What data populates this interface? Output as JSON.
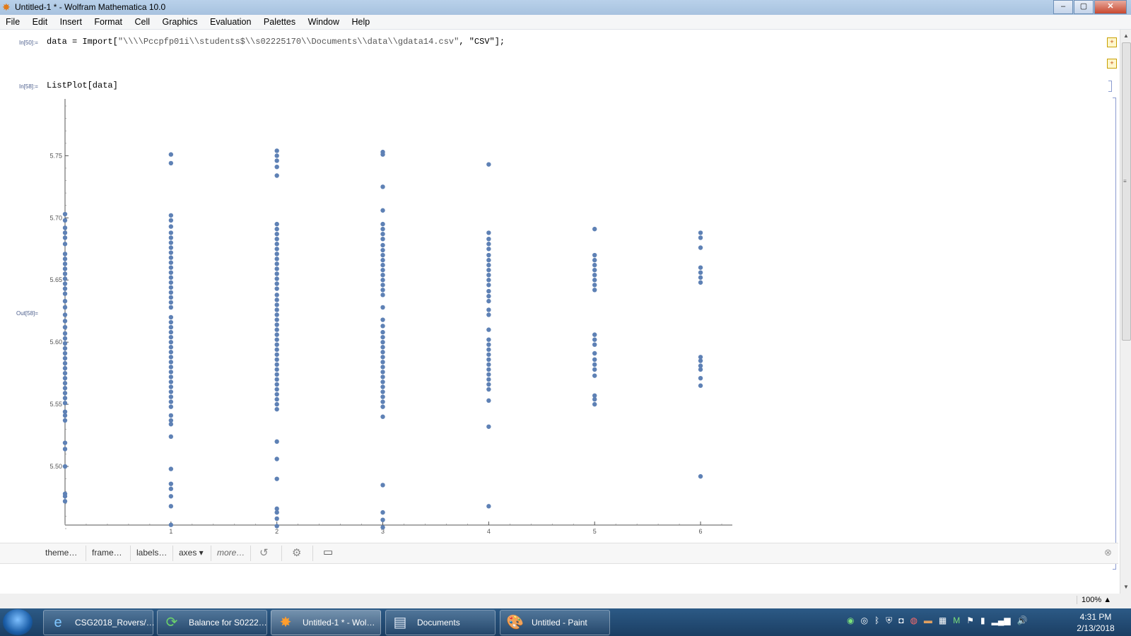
{
  "window": {
    "title": "Untitled-1 * - Wolfram Mathematica 10.0",
    "min": "–",
    "max": "▢",
    "close": "✕"
  },
  "menu": [
    "File",
    "Edit",
    "Insert",
    "Format",
    "Cell",
    "Graphics",
    "Evaluation",
    "Palettes",
    "Window",
    "Help"
  ],
  "cells": [
    {
      "label": "In[50]:=",
      "code_pre": "data = Import[",
      "string": "\"\\\\\\\\Pccpfp01i\\\\students$\\\\s02225170\\\\Documents\\\\data\\\\gdata14.csv\"",
      "code_post": ", \"CSV\"];"
    },
    {
      "label": "In[58]:=",
      "code": "ListPlot[data]"
    }
  ],
  "output_label": "Out[58]=",
  "chart_data": {
    "type": "scatter",
    "color": "#5E81B5",
    "xlim": [
      0,
      6.3
    ],
    "ylim": [
      5.45,
      5.79
    ],
    "x_ticks": [
      1,
      2,
      3,
      4,
      5,
      6
    ],
    "x_tick_labels": [
      "1",
      "2",
      "3",
      "4",
      "5",
      "6"
    ],
    "y_ticks": [
      5.5,
      5.55,
      5.6,
      5.65,
      5.7,
      5.75
    ],
    "y_tick_labels": [
      "5.50",
      "5.55",
      "5.60",
      "5.65",
      "5.70",
      "5.75"
    ],
    "points": [
      [
        0,
        5.703
      ],
      [
        0,
        5.698
      ],
      [
        0,
        5.692
      ],
      [
        0,
        5.688
      ],
      [
        0,
        5.684
      ],
      [
        0,
        5.679
      ],
      [
        0,
        5.671
      ],
      [
        0,
        5.667
      ],
      [
        0,
        5.663
      ],
      [
        0,
        5.659
      ],
      [
        0,
        5.655
      ],
      [
        0,
        5.651
      ],
      [
        0,
        5.647
      ],
      [
        0,
        5.643
      ],
      [
        0,
        5.639
      ],
      [
        0,
        5.633
      ],
      [
        0,
        5.628
      ],
      [
        0,
        5.622
      ],
      [
        0,
        5.617
      ],
      [
        0,
        5.612
      ],
      [
        0,
        5.607
      ],
      [
        0,
        5.603
      ],
      [
        0,
        5.599
      ],
      [
        0,
        5.595
      ],
      [
        0,
        5.591
      ],
      [
        0,
        5.587
      ],
      [
        0,
        5.583
      ],
      [
        0,
        5.579
      ],
      [
        0,
        5.575
      ],
      [
        0,
        5.571
      ],
      [
        0,
        5.567
      ],
      [
        0,
        5.563
      ],
      [
        0,
        5.559
      ],
      [
        0,
        5.555
      ],
      [
        0,
        5.551
      ],
      [
        0,
        5.544
      ],
      [
        0,
        5.541
      ],
      [
        0,
        5.537
      ],
      [
        0,
        5.519
      ],
      [
        0,
        5.514
      ],
      [
        0,
        5.5
      ],
      [
        0,
        5.478
      ],
      [
        0,
        5.476
      ],
      [
        0,
        5.472
      ],
      [
        1,
        5.751
      ],
      [
        1,
        5.744
      ],
      [
        1,
        5.702
      ],
      [
        1,
        5.698
      ],
      [
        1,
        5.693
      ],
      [
        1,
        5.688
      ],
      [
        1,
        5.684
      ],
      [
        1,
        5.68
      ],
      [
        1,
        5.676
      ],
      [
        1,
        5.672
      ],
      [
        1,
        5.668
      ],
      [
        1,
        5.664
      ],
      [
        1,
        5.66
      ],
      [
        1,
        5.656
      ],
      [
        1,
        5.652
      ],
      [
        1,
        5.648
      ],
      [
        1,
        5.644
      ],
      [
        1,
        5.64
      ],
      [
        1,
        5.636
      ],
      [
        1,
        5.632
      ],
      [
        1,
        5.628
      ],
      [
        1,
        5.62
      ],
      [
        1,
        5.616
      ],
      [
        1,
        5.612
      ],
      [
        1,
        5.608
      ],
      [
        1,
        5.604
      ],
      [
        1,
        5.6
      ],
      [
        1,
        5.596
      ],
      [
        1,
        5.592
      ],
      [
        1,
        5.588
      ],
      [
        1,
        5.584
      ],
      [
        1,
        5.58
      ],
      [
        1,
        5.576
      ],
      [
        1,
        5.572
      ],
      [
        1,
        5.568
      ],
      [
        1,
        5.564
      ],
      [
        1,
        5.56
      ],
      [
        1,
        5.556
      ],
      [
        1,
        5.552
      ],
      [
        1,
        5.548
      ],
      [
        1,
        5.541
      ],
      [
        1,
        5.537
      ],
      [
        1,
        5.534
      ],
      [
        1,
        5.524
      ],
      [
        1,
        5.498
      ],
      [
        1,
        5.486
      ],
      [
        1,
        5.482
      ],
      [
        1,
        5.476
      ],
      [
        1,
        5.468
      ],
      [
        1,
        5.453
      ],
      [
        2,
        5.754
      ],
      [
        2,
        5.75
      ],
      [
        2,
        5.746
      ],
      [
        2,
        5.741
      ],
      [
        2,
        5.734
      ],
      [
        2,
        5.695
      ],
      [
        2,
        5.691
      ],
      [
        2,
        5.687
      ],
      [
        2,
        5.683
      ],
      [
        2,
        5.679
      ],
      [
        2,
        5.675
      ],
      [
        2,
        5.671
      ],
      [
        2,
        5.667
      ],
      [
        2,
        5.663
      ],
      [
        2,
        5.659
      ],
      [
        2,
        5.655
      ],
      [
        2,
        5.651
      ],
      [
        2,
        5.647
      ],
      [
        2,
        5.643
      ],
      [
        2,
        5.638
      ],
      [
        2,
        5.634
      ],
      [
        2,
        5.63
      ],
      [
        2,
        5.626
      ],
      [
        2,
        5.622
      ],
      [
        2,
        5.618
      ],
      [
        2,
        5.614
      ],
      [
        2,
        5.61
      ],
      [
        2,
        5.606
      ],
      [
        2,
        5.602
      ],
      [
        2,
        5.598
      ],
      [
        2,
        5.594
      ],
      [
        2,
        5.59
      ],
      [
        2,
        5.586
      ],
      [
        2,
        5.582
      ],
      [
        2,
        5.578
      ],
      [
        2,
        5.574
      ],
      [
        2,
        5.57
      ],
      [
        2,
        5.566
      ],
      [
        2,
        5.562
      ],
      [
        2,
        5.558
      ],
      [
        2,
        5.554
      ],
      [
        2,
        5.55
      ],
      [
        2,
        5.546
      ],
      [
        2,
        5.52
      ],
      [
        2,
        5.506
      ],
      [
        2,
        5.49
      ],
      [
        2,
        5.466
      ],
      [
        2,
        5.463
      ],
      [
        2,
        5.458
      ],
      [
        2,
        5.452
      ],
      [
        3,
        5.753
      ],
      [
        3,
        5.751
      ],
      [
        3,
        5.725
      ],
      [
        3,
        5.706
      ],
      [
        3,
        5.695
      ],
      [
        3,
        5.691
      ],
      [
        3,
        5.687
      ],
      [
        3,
        5.683
      ],
      [
        3,
        5.678
      ],
      [
        3,
        5.674
      ],
      [
        3,
        5.67
      ],
      [
        3,
        5.666
      ],
      [
        3,
        5.662
      ],
      [
        3,
        5.658
      ],
      [
        3,
        5.654
      ],
      [
        3,
        5.65
      ],
      [
        3,
        5.646
      ],
      [
        3,
        5.642
      ],
      [
        3,
        5.638
      ],
      [
        3,
        5.628
      ],
      [
        3,
        5.618
      ],
      [
        3,
        5.613
      ],
      [
        3,
        5.608
      ],
      [
        3,
        5.604
      ],
      [
        3,
        5.6
      ],
      [
        3,
        5.596
      ],
      [
        3,
        5.592
      ],
      [
        3,
        5.588
      ],
      [
        3,
        5.584
      ],
      [
        3,
        5.58
      ],
      [
        3,
        5.576
      ],
      [
        3,
        5.572
      ],
      [
        3,
        5.568
      ],
      [
        3,
        5.564
      ],
      [
        3,
        5.56
      ],
      [
        3,
        5.556
      ],
      [
        3,
        5.552
      ],
      [
        3,
        5.548
      ],
      [
        3,
        5.54
      ],
      [
        3,
        5.485
      ],
      [
        3,
        5.463
      ],
      [
        3,
        5.457
      ],
      [
        3,
        5.451
      ],
      [
        4,
        5.743
      ],
      [
        4,
        5.688
      ],
      [
        4,
        5.683
      ],
      [
        4,
        5.679
      ],
      [
        4,
        5.675
      ],
      [
        4,
        5.67
      ],
      [
        4,
        5.666
      ],
      [
        4,
        5.662
      ],
      [
        4,
        5.658
      ],
      [
        4,
        5.654
      ],
      [
        4,
        5.65
      ],
      [
        4,
        5.646
      ],
      [
        4,
        5.641
      ],
      [
        4,
        5.637
      ],
      [
        4,
        5.633
      ],
      [
        4,
        5.626
      ],
      [
        4,
        5.622
      ],
      [
        4,
        5.61
      ],
      [
        4,
        5.602
      ],
      [
        4,
        5.598
      ],
      [
        4,
        5.594
      ],
      [
        4,
        5.59
      ],
      [
        4,
        5.586
      ],
      [
        4,
        5.582
      ],
      [
        4,
        5.578
      ],
      [
        4,
        5.574
      ],
      [
        4,
        5.57
      ],
      [
        4,
        5.566
      ],
      [
        4,
        5.562
      ],
      [
        4,
        5.553
      ],
      [
        4,
        5.532
      ],
      [
        4,
        5.468
      ],
      [
        5,
        5.691
      ],
      [
        5,
        5.67
      ],
      [
        5,
        5.666
      ],
      [
        5,
        5.662
      ],
      [
        5,
        5.658
      ],
      [
        5,
        5.654
      ],
      [
        5,
        5.65
      ],
      [
        5,
        5.646
      ],
      [
        5,
        5.642
      ],
      [
        5,
        5.606
      ],
      [
        5,
        5.602
      ],
      [
        5,
        5.598
      ],
      [
        5,
        5.591
      ],
      [
        5,
        5.586
      ],
      [
        5,
        5.582
      ],
      [
        5,
        5.578
      ],
      [
        5,
        5.573
      ],
      [
        5,
        5.557
      ],
      [
        5,
        5.554
      ],
      [
        5,
        5.55
      ],
      [
        6,
        5.688
      ],
      [
        6,
        5.684
      ],
      [
        6,
        5.676
      ],
      [
        6,
        5.66
      ],
      [
        6,
        5.656
      ],
      [
        6,
        5.652
      ],
      [
        6,
        5.648
      ],
      [
        6,
        5.588
      ],
      [
        6,
        5.585
      ],
      [
        6,
        5.581
      ],
      [
        6,
        5.578
      ],
      [
        6,
        5.571
      ],
      [
        6,
        5.565
      ],
      [
        6,
        5.492
      ]
    ]
  },
  "toolbar": {
    "theme": "theme…",
    "frame": "frame…",
    "labels": "labels…",
    "axes": "axes ▾",
    "more": "more…"
  },
  "status": {
    "zoom": "100%"
  },
  "taskbar": {
    "items": [
      {
        "label": "CSG2018_Rovers/…"
      },
      {
        "label": "Balance for S0222…"
      },
      {
        "label": "Untitled-1 * - Wol…"
      },
      {
        "label": "Documents"
      },
      {
        "label": "Untitled - Paint"
      }
    ],
    "time": "4:31 PM",
    "date": "2/13/2018"
  }
}
